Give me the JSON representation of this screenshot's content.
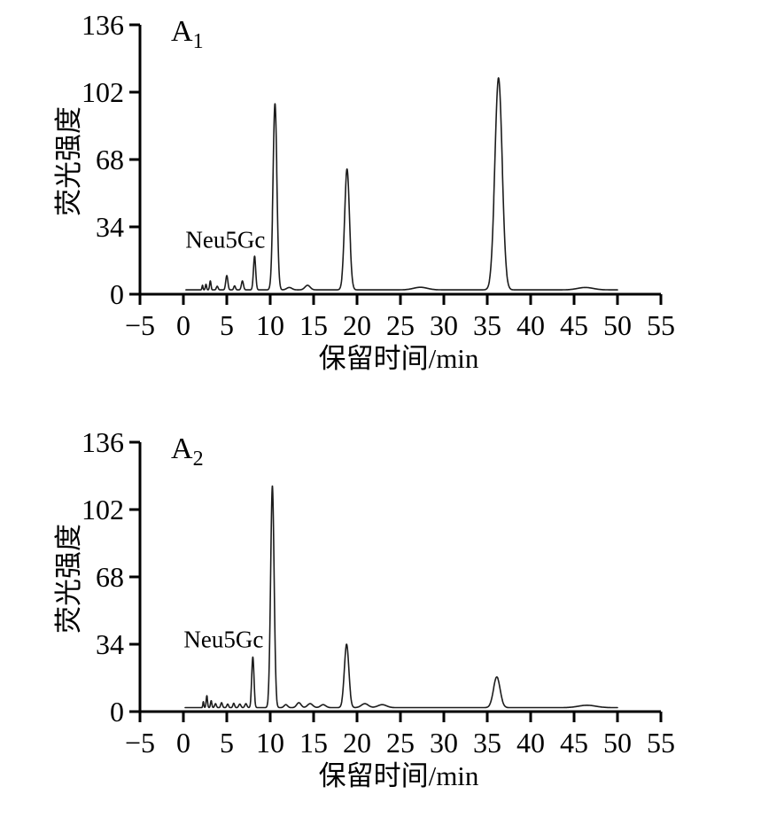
{
  "page": {
    "background": "#ffffff",
    "axis_color": "#000000",
    "trace_color": "#1c1c1c"
  },
  "chart_data": [
    {
      "type": "line",
      "panel_label": "A",
      "panel_label_sub": "1",
      "xlabel": "保留时间/min",
      "ylabel": "荧光强度",
      "xlim": [
        -5,
        55
      ],
      "ylim": [
        0,
        136
      ],
      "x_ticks": [
        "−5",
        "0",
        "5",
        "10",
        "15",
        "20",
        "25",
        "30",
        "35",
        "40",
        "45",
        "50",
        "55"
      ],
      "x_tick_values": [
        -5,
        0,
        5,
        10,
        15,
        20,
        25,
        30,
        35,
        40,
        45,
        50,
        55
      ],
      "y_ticks": [
        "0",
        "34",
        "68",
        "102",
        "136"
      ],
      "y_tick_values": [
        0,
        34,
        68,
        102,
        136
      ],
      "grid": false,
      "legend": null,
      "annotation": {
        "label": "Neu5Gc",
        "t": 8.2,
        "h": 19
      },
      "baseline": 2.2,
      "trace_start": 0.3,
      "trace_end": 50,
      "peaks": [
        {
          "t": 2.2,
          "h": 2.3,
          "w": 0.06
        },
        {
          "t": 2.6,
          "h": 2.8,
          "w": 0.07
        },
        {
          "t": 3.1,
          "h": 4.5,
          "w": 0.08
        },
        {
          "t": 3.9,
          "h": 1.8,
          "w": 0.1
        },
        {
          "t": 5.0,
          "h": 7.2,
          "w": 0.12
        },
        {
          "t": 5.9,
          "h": 2.0,
          "w": 0.1
        },
        {
          "t": 6.8,
          "h": 4.5,
          "w": 0.12
        },
        {
          "t": 8.2,
          "h": 17.0,
          "w": 0.13
        },
        {
          "t": 10.55,
          "h": 94.0,
          "w": 0.22
        },
        {
          "t": 12.2,
          "h": 1.2,
          "w": 0.3
        },
        {
          "t": 14.3,
          "h": 2.3,
          "w": 0.3
        },
        {
          "t": 18.85,
          "h": 61.0,
          "w": 0.28
        },
        {
          "t": 27.3,
          "h": 1.3,
          "w": 0.8
        },
        {
          "t": 36.3,
          "h": 107.0,
          "w": 0.42
        },
        {
          "t": 46.3,
          "h": 1.2,
          "w": 0.9
        }
      ]
    },
    {
      "type": "line",
      "panel_label": "A",
      "panel_label_sub": "2",
      "xlabel": "保留时间/min",
      "ylabel": "荧光强度",
      "xlim": [
        -5,
        55
      ],
      "ylim": [
        0,
        136
      ],
      "x_ticks": [
        "−5",
        "0",
        "5",
        "10",
        "15",
        "20",
        "25",
        "30",
        "35",
        "40",
        "45",
        "50",
        "55"
      ],
      "x_tick_values": [
        -5,
        0,
        5,
        10,
        15,
        20,
        25,
        30,
        35,
        40,
        45,
        50,
        55
      ],
      "y_ticks": [
        "0",
        "34",
        "68",
        "102",
        "136"
      ],
      "y_tick_values": [
        0,
        34,
        68,
        102,
        136
      ],
      "grid": false,
      "legend": null,
      "annotation": {
        "label": "Neu5Gc",
        "t": 8.0,
        "h": 28
      },
      "baseline": 2.0,
      "trace_start": 0.2,
      "trace_end": 50,
      "peaks": [
        {
          "t": 2.3,
          "h": 3.0,
          "w": 0.06
        },
        {
          "t": 2.7,
          "h": 6.0,
          "w": 0.08
        },
        {
          "t": 3.2,
          "h": 3.5,
          "w": 0.08
        },
        {
          "t": 3.7,
          "h": 2.0,
          "w": 0.1
        },
        {
          "t": 4.4,
          "h": 2.5,
          "w": 0.1
        },
        {
          "t": 5.1,
          "h": 1.8,
          "w": 0.1
        },
        {
          "t": 5.8,
          "h": 2.2,
          "w": 0.1
        },
        {
          "t": 6.5,
          "h": 1.8,
          "w": 0.12
        },
        {
          "t": 7.2,
          "h": 2.0,
          "w": 0.12
        },
        {
          "t": 8.0,
          "h": 25.5,
          "w": 0.13
        },
        {
          "t": 10.25,
          "h": 112.0,
          "w": 0.2
        },
        {
          "t": 11.8,
          "h": 1.5,
          "w": 0.2
        },
        {
          "t": 13.3,
          "h": 2.5,
          "w": 0.25
        },
        {
          "t": 14.6,
          "h": 2.0,
          "w": 0.3
        },
        {
          "t": 16.1,
          "h": 1.5,
          "w": 0.3
        },
        {
          "t": 18.8,
          "h": 32.0,
          "w": 0.26
        },
        {
          "t": 20.9,
          "h": 2.0,
          "w": 0.4
        },
        {
          "t": 22.9,
          "h": 1.5,
          "w": 0.5
        },
        {
          "t": 36.1,
          "h": 15.5,
          "w": 0.38
        },
        {
          "t": 46.5,
          "h": 1.2,
          "w": 1.0
        }
      ]
    }
  ]
}
